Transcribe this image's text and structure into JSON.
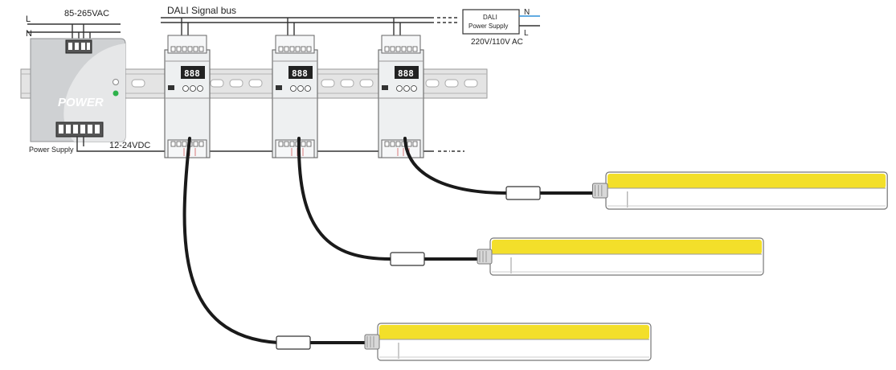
{
  "labels": {
    "ac_input": "85-265VAC",
    "line_L": "L",
    "line_N": "N",
    "dali_bus": "DALI Signal bus",
    "dali_psu_line1": "DALI",
    "dali_psu_line2": "Power Supply",
    "dali_psu_N": "N",
    "dali_psu_L": "L",
    "dali_psu_voltage": "220V/110V AC",
    "psu_brand": "POWER",
    "psu_caption": "Power Supply",
    "dc_bus": "12-24VDC"
  },
  "dimmers": [
    {
      "display": "888"
    },
    {
      "display": "888"
    },
    {
      "display": "888"
    }
  ],
  "colors": {
    "psu_body": "#cfd1d3",
    "din_rail": "#d9d9d9",
    "led_strip": "#f3df2a",
    "cable": "#1a1a1a",
    "status_led": "#2db24a",
    "n_wire": "#2f8fd8"
  }
}
